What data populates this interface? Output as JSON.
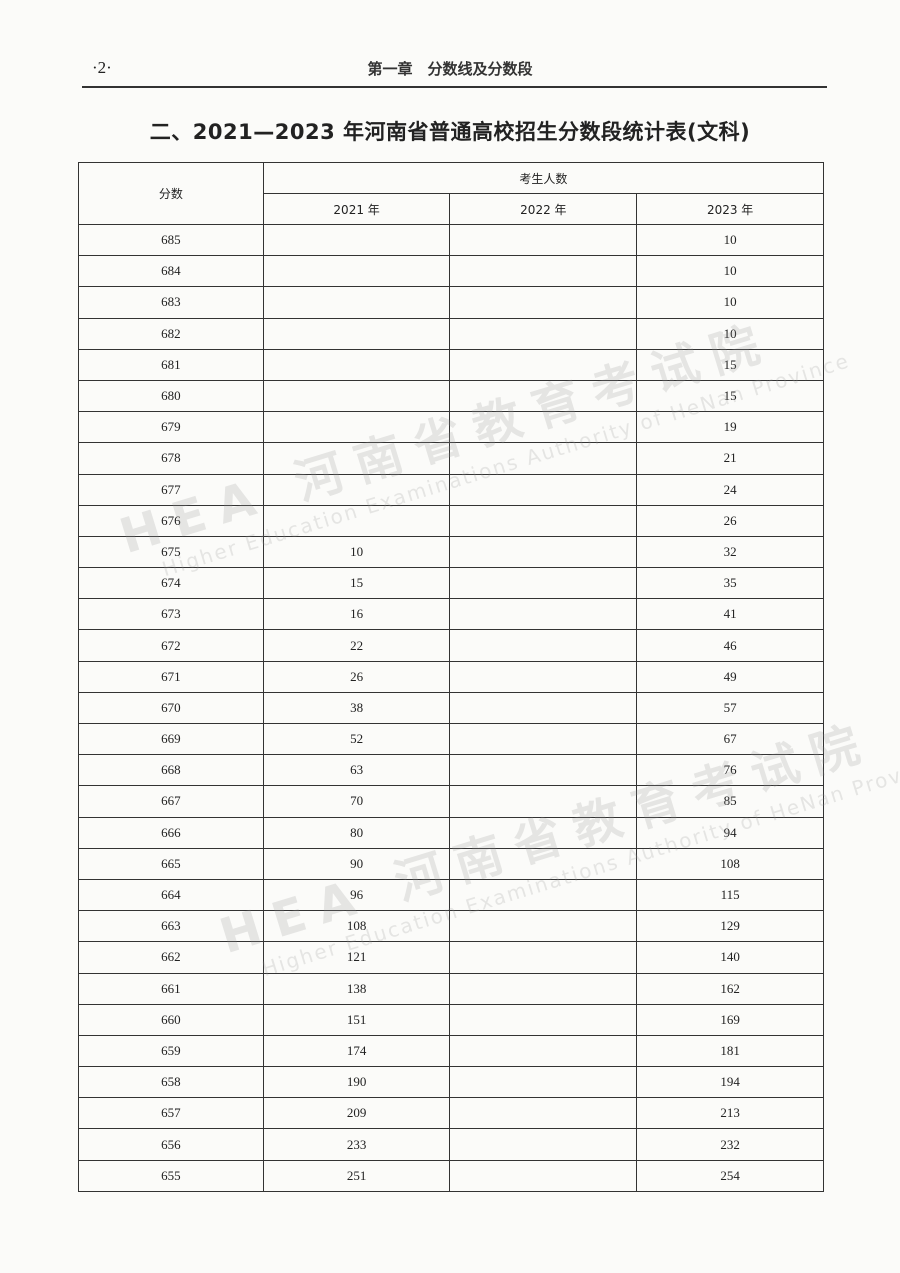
{
  "header": {
    "page_number": "·2·",
    "running_title": "第一章　分数线及分数段"
  },
  "title": "二、2021—2023 年河南省普通高校招生分数段统计表(文科)",
  "watermark": {
    "cn": "河南省教育考试院",
    "en": "Higher Education Examinations Authority of HeNan Province"
  },
  "table": {
    "score_header": "分数",
    "group_header": "考生人数",
    "year_headers": [
      "2021 年",
      "2022 年",
      "2023 年"
    ],
    "rows": [
      [
        "685",
        "",
        "",
        "10"
      ],
      [
        "684",
        "",
        "",
        "10"
      ],
      [
        "683",
        "",
        "",
        "10"
      ],
      [
        "682",
        "",
        "",
        "10"
      ],
      [
        "681",
        "",
        "",
        "15"
      ],
      [
        "680",
        "",
        "",
        "15"
      ],
      [
        "679",
        "",
        "",
        "19"
      ],
      [
        "678",
        "",
        "",
        "21"
      ],
      [
        "677",
        "",
        "",
        "24"
      ],
      [
        "676",
        "",
        "",
        "26"
      ],
      [
        "675",
        "10",
        "",
        "32"
      ],
      [
        "674",
        "15",
        "",
        "35"
      ],
      [
        "673",
        "16",
        "",
        "41"
      ],
      [
        "672",
        "22",
        "",
        "46"
      ],
      [
        "671",
        "26",
        "",
        "49"
      ],
      [
        "670",
        "38",
        "",
        "57"
      ],
      [
        "669",
        "52",
        "",
        "67"
      ],
      [
        "668",
        "63",
        "",
        "76"
      ],
      [
        "667",
        "70",
        "",
        "85"
      ],
      [
        "666",
        "80",
        "",
        "94"
      ],
      [
        "665",
        "90",
        "",
        "108"
      ],
      [
        "664",
        "96",
        "",
        "115"
      ],
      [
        "663",
        "108",
        "",
        "129"
      ],
      [
        "662",
        "121",
        "",
        "140"
      ],
      [
        "661",
        "138",
        "",
        "162"
      ],
      [
        "660",
        "151",
        "",
        "169"
      ],
      [
        "659",
        "174",
        "",
        "181"
      ],
      [
        "658",
        "190",
        "",
        "194"
      ],
      [
        "657",
        "209",
        "",
        "213"
      ],
      [
        "656",
        "233",
        "",
        "232"
      ],
      [
        "655",
        "251",
        "",
        "254"
      ]
    ]
  }
}
